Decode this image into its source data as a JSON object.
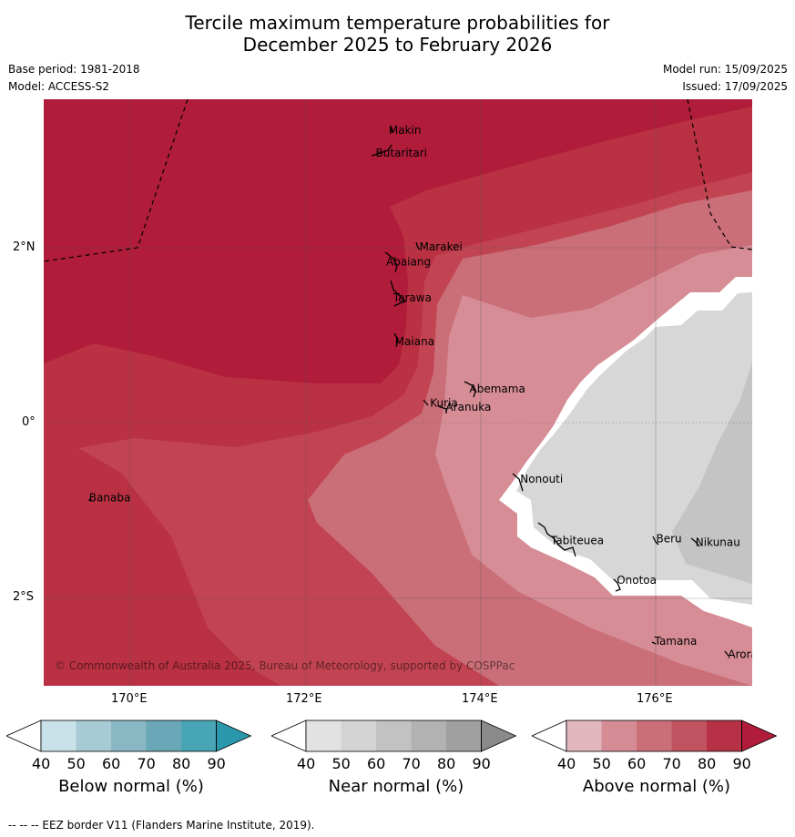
{
  "title_line1": "Tercile maximum temperature probabilities for",
  "title_line2": "December 2025 to February 2026",
  "base_period": "Base period: 1981-2018",
  "model": "Model: ACCESS-S2",
  "model_run": "Model run: 15/09/2025",
  "issued": "Issued: 17/09/2025",
  "axis": {
    "lat_ticks": [
      "2°N",
      "0°",
      "2°S"
    ],
    "lon_ticks": [
      "170°E",
      "172°E",
      "174°E",
      "176°E"
    ]
  },
  "islands": [
    {
      "name": "Makin",
      "lon": 172.95,
      "lat": 3.33
    },
    {
      "name": "Butaritari",
      "lon": 172.8,
      "lat": 3.07
    },
    {
      "name": "Marakei",
      "lon": 173.3,
      "lat": 2.0
    },
    {
      "name": "Abaiang",
      "lon": 172.92,
      "lat": 1.83
    },
    {
      "name": "Tarawa",
      "lon": 173.0,
      "lat": 1.42
    },
    {
      "name": "Maiana",
      "lon": 173.02,
      "lat": 0.92
    },
    {
      "name": "Abemama",
      "lon": 173.87,
      "lat": 0.38
    },
    {
      "name": "Kuria",
      "lon": 173.42,
      "lat": 0.22
    },
    {
      "name": "Aranuka",
      "lon": 173.6,
      "lat": 0.17
    },
    {
      "name": "Nonouti",
      "lon": 174.45,
      "lat": -0.65
    },
    {
      "name": "Banaba",
      "lon": 169.53,
      "lat": -0.86
    },
    {
      "name": "Tabiteuea",
      "lon": 174.8,
      "lat": -1.35
    },
    {
      "name": "Beru",
      "lon": 176.0,
      "lat": -1.33
    },
    {
      "name": "Nikunau",
      "lon": 176.45,
      "lat": -1.37
    },
    {
      "name": "Onotoa",
      "lon": 175.55,
      "lat": -1.8
    },
    {
      "name": "Tamana",
      "lon": 175.98,
      "lat": -2.5
    },
    {
      "name": "Arorae",
      "lon": 176.82,
      "lat": -2.65
    }
  ],
  "copyright": "© Commonwealth of Australia 2025, Bureau of Meteorology, supported by COSPPac",
  "colorbars": [
    {
      "label": "Below normal (%)",
      "ticks": [
        "40",
        "50",
        "60",
        "70",
        "80",
        "90"
      ],
      "colors": [
        "#ffffff",
        "#c9e2ea",
        "#a7cbd4",
        "#89b8c4",
        "#6ba8b7",
        "#47a5b5",
        "#2a97ad"
      ]
    },
    {
      "label": "Near normal (%)",
      "ticks": [
        "40",
        "50",
        "60",
        "70",
        "80",
        "90"
      ],
      "colors": [
        "#ffffff",
        "#e2e2e2",
        "#d4d4d4",
        "#c2c2c2",
        "#b2b2b2",
        "#a0a0a0",
        "#8a8a8a"
      ]
    },
    {
      "label": "Above normal (%)",
      "ticks": [
        "40",
        "50",
        "60",
        "70",
        "80",
        "90"
      ],
      "colors": [
        "#ffffff",
        "#e1b6bd",
        "#d58c94",
        "#ca6e78",
        "#bf535f",
        "#b63145",
        "#b01c3a"
      ]
    }
  ],
  "footer": "--  --  -- EEZ border V11 (Flanders Marine Institute, 2019).",
  "colors": {
    "above_90": "#b01c3a",
    "above_80": "#b93143",
    "above_70": "#c24452",
    "above_60": "#ca6e78",
    "above_50": "#d68d95",
    "near_50": "#d7d7d7",
    "near_60": "#c4c4c4"
  }
}
